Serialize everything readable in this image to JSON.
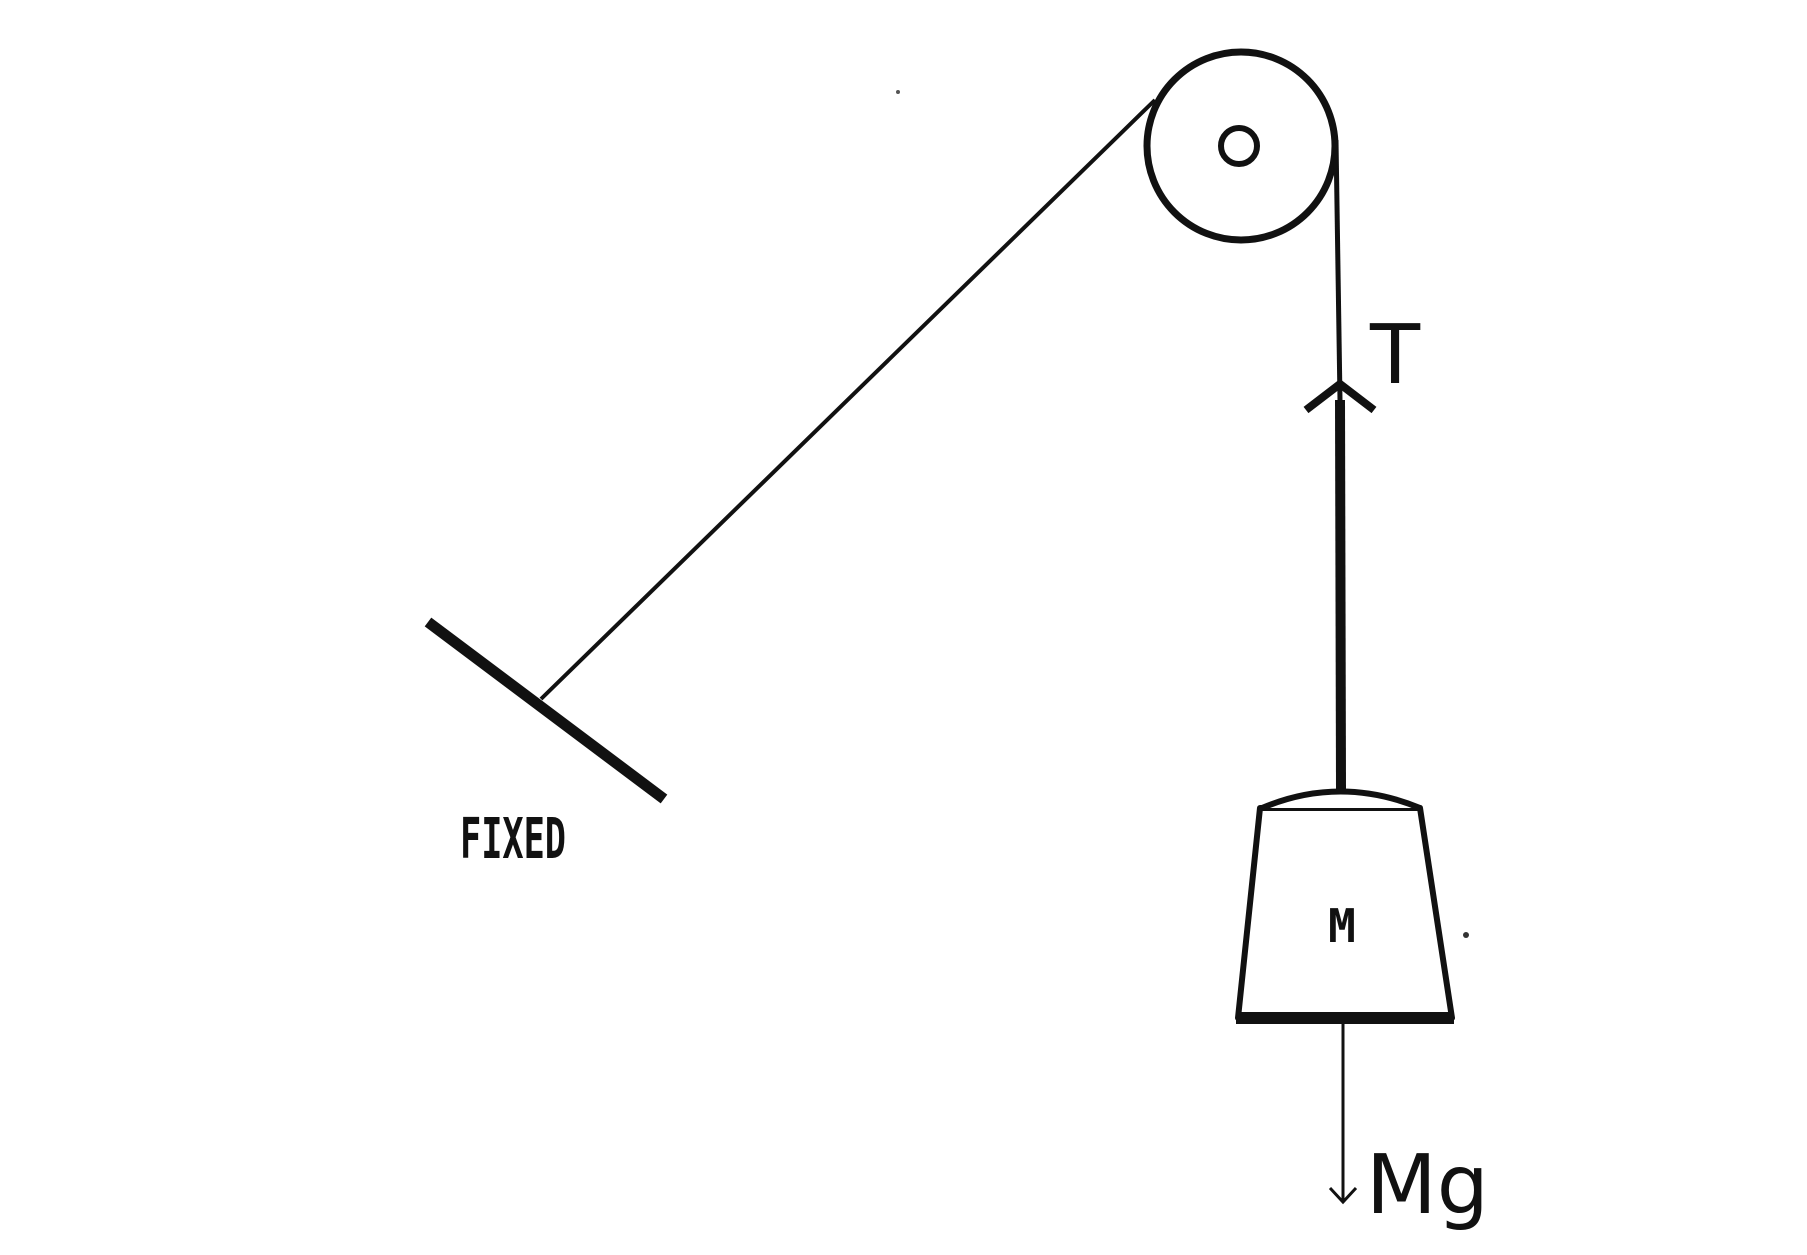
{
  "labels": {
    "support": "FIXED",
    "mass": "M",
    "tension": "T",
    "weight": "Mg"
  },
  "colors": {
    "ink": "#111111",
    "background": "#ffffff"
  }
}
